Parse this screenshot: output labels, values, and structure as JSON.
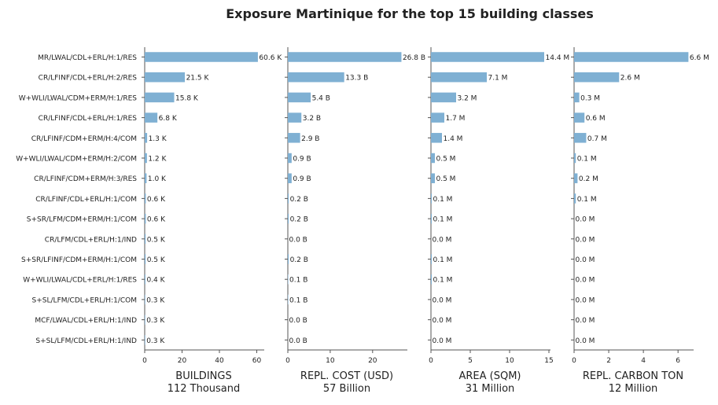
{
  "chart_data": {
    "type": "bar",
    "orientation": "horizontal",
    "title": "Exposure Martinique for the top 15 building classes",
    "bar_color": "#7fb0d3",
    "categories": [
      "MR/LWAL/CDL+ERL/H:1/RES",
      "CR/LFINF/CDL+ERL/H:2/RES",
      "W+WLI/LWAL/CDM+ERM/H:1/RES",
      "CR/LFINF/CDL+ERL/H:1/RES",
      "CR/LFINF/CDM+ERM/H:4/COM",
      "W+WLI/LWAL/CDM+ERM/H:2/COM",
      "CR/LFINF/CDM+ERM/H:3/RES",
      "CR/LFINF/CDL+ERL/H:1/COM",
      "S+SR/LFM/CDM+ERM/H:1/COM",
      "CR/LFM/CDL+ERL/H:1/IND",
      "S+SR/LFINF/CDM+ERM/H:1/COM",
      "W+WLI/LWAL/CDL+ERL/H:1/RES",
      "S+SL/LFM/CDL+ERL/H:1/COM",
      "MCF/LWAL/CDL+ERL/H:1/IND",
      "S+SL/LFM/CDL+ERL/H:1/IND"
    ],
    "panels": [
      {
        "xlabel": "BUILDINGS",
        "total": "112 Thousand",
        "xlim": [
          0,
          64
        ],
        "xticks": [
          0,
          20,
          40,
          60
        ],
        "values": [
          60.6,
          21.5,
          15.8,
          6.8,
          1.3,
          1.2,
          1.0,
          0.6,
          0.6,
          0.5,
          0.5,
          0.4,
          0.3,
          0.3,
          0.3
        ],
        "labels": [
          "60.6 K",
          "21.5 K",
          "15.8 K",
          "6.8 K",
          "1.3 K",
          "1.2 K",
          "1.0 K",
          "0.6 K",
          "0.6 K",
          "0.5 K",
          "0.5 K",
          "0.4 K",
          "0.3 K",
          "0.3 K",
          "0.3 K"
        ]
      },
      {
        "xlabel": "REPL. COST (USD)",
        "total": "57 Billion",
        "xlim": [
          0,
          28.2
        ],
        "xticks": [
          0,
          10,
          20
        ],
        "values": [
          26.8,
          13.3,
          5.4,
          3.2,
          2.9,
          0.9,
          0.9,
          0.2,
          0.2,
          0.0,
          0.2,
          0.1,
          0.1,
          0.0,
          0.0
        ],
        "labels": [
          "26.8 B",
          "13.3 B",
          "5.4 B",
          "3.2 B",
          "2.9 B",
          "0.9 B",
          "0.9 B",
          "0.2 B",
          "0.2 B",
          "0.0 B",
          "0.2 B",
          "0.1 B",
          "0.1 B",
          "0.0 B",
          "0.0 B"
        ]
      },
      {
        "xlabel": "AREA (SQM)",
        "total": "31 Million",
        "xlim": [
          0,
          15.2
        ],
        "xticks": [
          0,
          5,
          10,
          15
        ],
        "values": [
          14.4,
          7.1,
          3.2,
          1.7,
          1.4,
          0.5,
          0.5,
          0.1,
          0.1,
          0.0,
          0.1,
          0.1,
          0.0,
          0.0,
          0.0
        ],
        "labels": [
          "14.4 M",
          "7.1 M",
          "3.2 M",
          "1.7 M",
          "1.4 M",
          "0.5 M",
          "0.5 M",
          "0.1 M",
          "0.1 M",
          "0.0 M",
          "0.1 M",
          "0.1 M",
          "0.0 M",
          "0.0 M",
          "0.0 M"
        ]
      },
      {
        "xlabel": "REPL. CARBON TON",
        "total": "12 Million",
        "xlim": [
          0,
          6.9
        ],
        "xticks": [
          0,
          2,
          4,
          6
        ],
        "values": [
          6.6,
          2.6,
          0.3,
          0.6,
          0.7,
          0.1,
          0.2,
          0.1,
          0.0,
          0.0,
          0.0,
          0.0,
          0.0,
          0.0,
          0.0
        ],
        "labels": [
          "6.6 M",
          "2.6 M",
          "0.3 M",
          "0.6 M",
          "0.7 M",
          "0.1 M",
          "0.2 M",
          "0.1 M",
          "0.0 M",
          "0.0 M",
          "0.0 M",
          "0.0 M",
          "0.0 M",
          "0.0 M",
          "0.0 M"
        ]
      }
    ]
  }
}
